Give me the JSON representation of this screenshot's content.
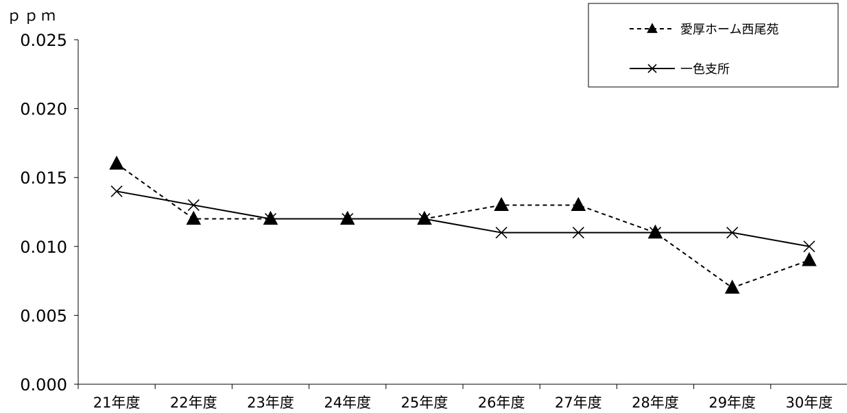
{
  "chart_data": {
    "type": "line",
    "ylabel": "ｐｐｍ",
    "ylim": [
      0,
      0.025
    ],
    "y_ticks": [
      "0.000",
      "0.005",
      "0.010",
      "0.015",
      "0.020",
      "0.025"
    ],
    "categories": [
      "21年度",
      "22年度",
      "23年度",
      "24年度",
      "25年度",
      "26年度",
      "27年度",
      "28年度",
      "29年度",
      "30年度"
    ],
    "series": [
      {
        "name": "愛厚ホーム西尾苑",
        "line_style": "dashed",
        "marker": "triangle",
        "values": [
          0.016,
          0.012,
          0.012,
          0.012,
          0.012,
          0.013,
          0.013,
          0.011,
          0.007,
          0.009
        ]
      },
      {
        "name": "一色支所",
        "line_style": "solid",
        "marker": "cross",
        "values": [
          0.014,
          0.013,
          0.012,
          0.012,
          0.012,
          0.011,
          0.011,
          0.011,
          0.011,
          0.01
        ]
      }
    ],
    "legend_position": "top-right",
    "grid": false
  }
}
